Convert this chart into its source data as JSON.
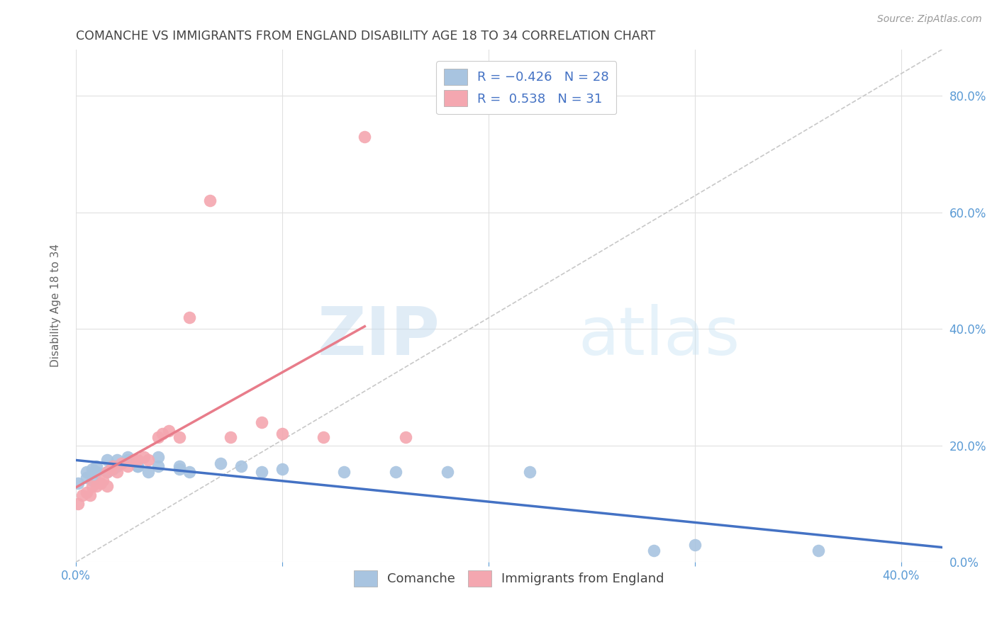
{
  "title": "COMANCHE VS IMMIGRANTS FROM ENGLAND DISABILITY AGE 18 TO 34 CORRELATION CHART",
  "source": "Source: ZipAtlas.com",
  "ylabel": "Disability Age 18 to 34",
  "xlim": [
    0,
    0.42
  ],
  "ylim": [
    0,
    0.88
  ],
  "xtick_pos": [
    0.0,
    0.1,
    0.2,
    0.3,
    0.4
  ],
  "xtick_labels_show": [
    "0.0%",
    "",
    "",
    "",
    "40.0%"
  ],
  "yticks": [
    0.0,
    0.2,
    0.4,
    0.6,
    0.8
  ],
  "ytick_labels": [
    "0.0%",
    "20.0%",
    "40.0%",
    "60.0%",
    "80.0%"
  ],
  "comanche_color": "#a8c4e0",
  "england_color": "#f4a7b0",
  "comanche_line_color": "#4472c4",
  "england_line_color": "#e87c8a",
  "comanche_x": [
    0.001,
    0.005,
    0.005,
    0.008,
    0.008,
    0.01,
    0.01,
    0.015,
    0.015,
    0.018,
    0.02,
    0.02,
    0.025,
    0.025,
    0.03,
    0.03,
    0.035,
    0.04,
    0.04,
    0.05,
    0.05,
    0.055,
    0.07,
    0.08,
    0.09,
    0.1,
    0.13,
    0.155,
    0.18,
    0.22,
    0.28,
    0.3,
    0.36
  ],
  "comanche_y": [
    0.135,
    0.145,
    0.155,
    0.14,
    0.16,
    0.155,
    0.165,
    0.175,
    0.155,
    0.16,
    0.175,
    0.165,
    0.18,
    0.175,
    0.165,
    0.165,
    0.155,
    0.165,
    0.18,
    0.16,
    0.165,
    0.155,
    0.17,
    0.165,
    0.155,
    0.16,
    0.155,
    0.155,
    0.155,
    0.155,
    0.02,
    0.03,
    0.02
  ],
  "england_x": [
    0.001,
    0.003,
    0.005,
    0.007,
    0.008,
    0.01,
    0.012,
    0.013,
    0.015,
    0.015,
    0.017,
    0.018,
    0.02,
    0.022,
    0.025,
    0.028,
    0.03,
    0.033,
    0.035,
    0.04,
    0.042,
    0.045,
    0.05,
    0.055,
    0.065,
    0.075,
    0.09,
    0.1,
    0.12,
    0.14,
    0.16
  ],
  "england_y": [
    0.1,
    0.115,
    0.12,
    0.115,
    0.13,
    0.13,
    0.135,
    0.14,
    0.13,
    0.155,
    0.16,
    0.165,
    0.155,
    0.17,
    0.165,
    0.175,
    0.175,
    0.18,
    0.175,
    0.215,
    0.22,
    0.225,
    0.215,
    0.42,
    0.62,
    0.215,
    0.24,
    0.22,
    0.215,
    0.73,
    0.215
  ],
  "background_color": "#ffffff",
  "grid_color": "#e0e0e0",
  "title_color": "#444444",
  "axis_color": "#5b9bd5",
  "ref_line_color": "#c8c8c8",
  "watermark_zip_color": "#ccdff0",
  "watermark_atlas_color": "#d0e8f8"
}
